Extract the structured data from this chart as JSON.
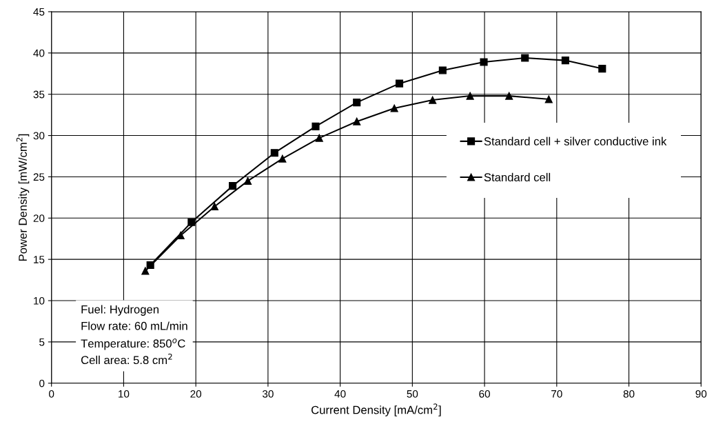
{
  "chart_data": {
    "type": "line",
    "xlabel": "Current Density [mA/cm$^{2}$]",
    "ylabel": "Power Density [mW/cm$^{2}$]",
    "xlim": [
      0,
      90
    ],
    "xticks": [
      0,
      10,
      20,
      30,
      40,
      50,
      60,
      70,
      80,
      90
    ],
    "ylim": [
      0,
      45
    ],
    "yticks": [
      0,
      5,
      10,
      15,
      20,
      25,
      30,
      35,
      40,
      45
    ],
    "grid": true,
    "legend": "right",
    "line_style": "solid",
    "series": [
      {
        "name": "Standard cell + silver conductive ink",
        "color": "#000000",
        "marker": "square",
        "x": [
          13.7,
          19.4,
          25.1,
          30.9,
          36.6,
          42.3,
          48.2,
          54.2,
          59.9,
          65.6,
          71.2,
          76.3
        ],
        "values": [
          14.3,
          19.5,
          23.9,
          27.9,
          31.1,
          34.0,
          36.3,
          37.9,
          38.9,
          39.4,
          39.1,
          38.1
        ]
      },
      {
        "name": "Standard cell",
        "color": "#000000",
        "marker": "triangle",
        "x": [
          13.0,
          17.9,
          22.6,
          27.2,
          32.0,
          37.1,
          42.3,
          47.5,
          52.8,
          58.0,
          63.4,
          68.9
        ],
        "values": [
          13.6,
          17.9,
          21.4,
          24.5,
          27.2,
          29.7,
          31.7,
          33.3,
          34.3,
          34.8,
          34.8,
          34.4
        ]
      }
    ],
    "annotations": [
      "Fuel: Hydrogen\nFlow rate: 60 mL/min\nTemperature: 850$^{o}$C\nCell area: 5.8 cm$^{2}$"
    ]
  }
}
